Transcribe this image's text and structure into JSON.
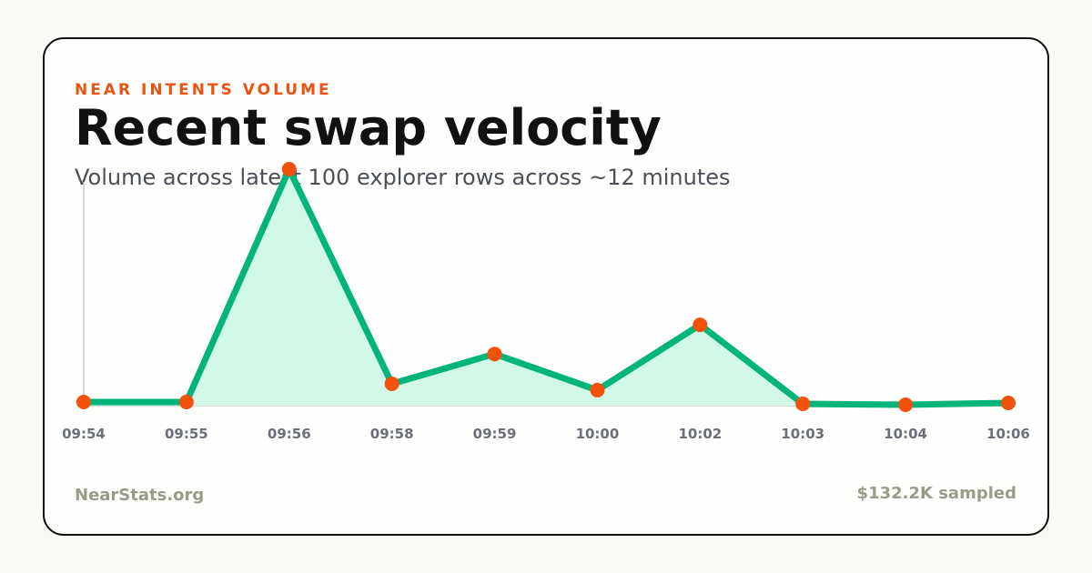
{
  "chart_data": {
    "type": "line",
    "eyebrow": "NEAR INTENTS VOLUME",
    "title": "Recent swap velocity",
    "subtitle": "Volume across latest 100 explorer rows across ~12 minutes",
    "categories": [
      "09:54",
      "09:55",
      "09:56",
      "09:58",
      "09:59",
      "10:00",
      "10:02",
      "10:03",
      "10:04",
      "10:06"
    ],
    "series": [
      {
        "color": "#00b47a",
        "fill": "#d2f8e8",
        "marker_color": "#f2520c",
        "values": [
          1150,
          1150,
          74600,
          6900,
          16300,
          4900,
          25500,
          570,
          290,
          860
        ]
      }
    ],
    "ylim": [
      0,
      74600
    ],
    "site": "NearStats.org",
    "total_label": "$132.2K sampled"
  }
}
